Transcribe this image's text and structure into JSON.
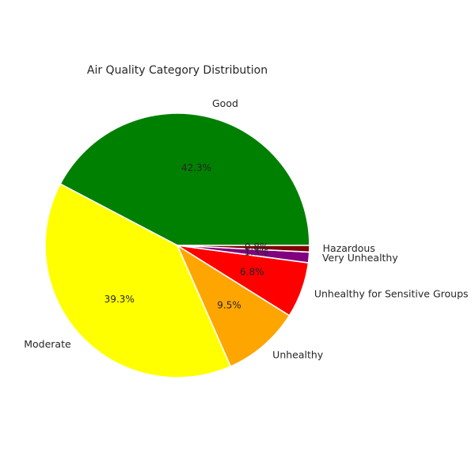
{
  "chart_data": {
    "type": "pie",
    "title": "Air Quality Category Distribution",
    "slices": [
      {
        "label": "Good",
        "value": 42.3,
        "pct_label": "42.3%",
        "color": "#008000"
      },
      {
        "label": "Moderate",
        "value": 39.3,
        "pct_label": "39.3%",
        "color": "#ffff00"
      },
      {
        "label": "Unhealthy",
        "value": 9.5,
        "pct_label": "9.5%",
        "color": "#ffa500"
      },
      {
        "label": "Unhealthy for Sensitive Groups",
        "value": 6.8,
        "pct_label": "6.8%",
        "color": "#ff0000"
      },
      {
        "label": "Very Unhealthy",
        "value": 1.3,
        "pct_label": "1.3%",
        "color": "#800080"
      },
      {
        "label": "Hazardous",
        "value": 0.8,
        "pct_label": "0.8%",
        "color": "#800000"
      }
    ],
    "start_angle_deg": 0,
    "direction": "counterclockwise",
    "legend": "none"
  }
}
